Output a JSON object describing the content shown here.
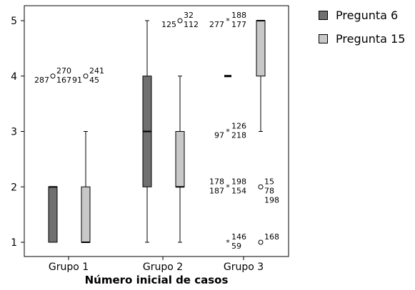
{
  "chart_data": {
    "type": "boxplot",
    "title": "",
    "xlabel": "Número inicial de casos",
    "ylabel": "",
    "ylim": [
      1,
      5
    ],
    "yticks": [
      1,
      2,
      3,
      4,
      5
    ],
    "categories": [
      "Grupo 1",
      "Grupo 2",
      "Grupo 3"
    ],
    "legend_position": "outside-right",
    "series": [
      {
        "name": "Pregunta 6",
        "color": "#707070",
        "boxes": [
          {
            "category": "Grupo 1",
            "min": 1,
            "q1": 1,
            "median": 2,
            "q3": 2,
            "max": 2
          },
          {
            "category": "Grupo 2",
            "min": 1,
            "q1": 2,
            "median": 3,
            "q3": 4,
            "max": 5
          },
          {
            "category": "Grupo 3",
            "min": 4,
            "q1": 4,
            "median": 4,
            "q3": 4,
            "max": 4
          }
        ]
      },
      {
        "name": "Pregunta 15",
        "color": "#c8c8c8",
        "boxes": [
          {
            "category": "Grupo 1",
            "min": 1,
            "q1": 1,
            "median": 1,
            "q3": 2,
            "max": 3
          },
          {
            "category": "Grupo 2",
            "min": 1,
            "q1": 2,
            "median": 2,
            "q3": 3,
            "max": 4
          },
          {
            "category": "Grupo 3",
            "min": 3,
            "q1": 4,
            "median": 5,
            "q3": 5,
            "max": 5
          }
        ]
      }
    ],
    "outliers": [
      {
        "category": "Grupo 1",
        "series": "Pregunta 6",
        "value": 4,
        "symbol": "circle",
        "labels_left": [
          "287"
        ],
        "labels_right": [
          "270",
          "167"
        ]
      },
      {
        "category": "Grupo 1",
        "series": "Pregunta 15",
        "value": 4,
        "symbol": "circle",
        "labels_left": [
          "91"
        ],
        "labels_right": [
          "241",
          "45"
        ]
      },
      {
        "category": "Grupo 2",
        "series": "Pregunta 15",
        "value": 5,
        "symbol": "circle",
        "labels_left": [
          "125"
        ],
        "labels_right": [
          "32",
          "112"
        ]
      },
      {
        "category": "Grupo 3",
        "series": "Pregunta 6",
        "value": 5,
        "symbol": "star",
        "labels_left": [
          "277"
        ],
        "labels_right": [
          "188",
          "177"
        ]
      },
      {
        "category": "Grupo 3",
        "series": "Pregunta 6",
        "value": 3,
        "symbol": "star",
        "labels_left": [
          "97"
        ],
        "labels_right": [
          "126",
          "218"
        ]
      },
      {
        "category": "Grupo 3",
        "series": "Pregunta 6",
        "value": 2,
        "symbol": "star",
        "labels_left": [
          "178",
          "187"
        ],
        "labels_right": [
          "198",
          "154"
        ]
      },
      {
        "category": "Grupo 3",
        "series": "Pregunta 6",
        "value": 1,
        "symbol": "star",
        "labels_left": [],
        "labels_right": [
          "146",
          "59"
        ]
      },
      {
        "category": "Grupo 3",
        "series": "Pregunta 15",
        "value": 2,
        "symbol": "circle",
        "labels_left": [],
        "labels_right": [
          "15",
          "78",
          "198"
        ]
      },
      {
        "category": "Grupo 3",
        "series": "Pregunta 15",
        "value": 1,
        "symbol": "circle",
        "labels_left": [],
        "labels_right": [
          "168"
        ]
      }
    ]
  }
}
